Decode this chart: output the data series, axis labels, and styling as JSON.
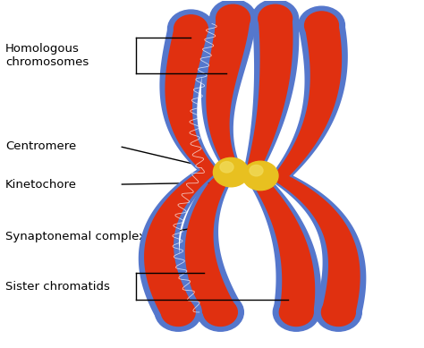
{
  "background_color": "#ffffff",
  "labels": {
    "homologous": "Homologous\nchromosomes",
    "centromere": "Centromere",
    "kinetochore": "Kinetochore",
    "synaptonemal": "Synaptonemal complex",
    "sister": "Sister chromatids"
  },
  "colors": {
    "red_chromatid": "#E03010",
    "blue_outline": "#5577CC",
    "blue_outline2": "#4466BB",
    "gold_centromere": "#E8C020",
    "gold_highlight": "#F0D855",
    "label_text": "#000000",
    "line_color": "#000000",
    "white_bg": "#ffffff"
  },
  "figsize": [
    4.74,
    3.89
  ],
  "dpi": 100
}
